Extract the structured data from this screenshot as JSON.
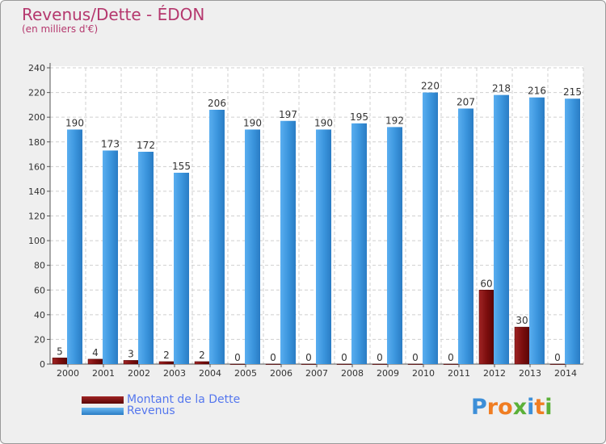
{
  "chart_data": {
    "type": "bar",
    "title": "Revenus/Dette - ÉDON",
    "subtitle": "(en milliers d'€)",
    "categories": [
      "2000",
      "2001",
      "2002",
      "2003",
      "2004",
      "2005",
      "2006",
      "2007",
      "2008",
      "2009",
      "2010",
      "2011",
      "2012",
      "2013",
      "2014"
    ],
    "series": [
      {
        "name": "Montant de la Dette",
        "color": "#7a0d0d",
        "values": [
          5,
          4,
          3,
          2,
          2,
          0,
          0,
          0,
          0,
          0,
          0,
          0,
          60,
          30,
          0
        ]
      },
      {
        "name": "Revenus",
        "color": "#3a94dc",
        "values": [
          190,
          173,
          172,
          155,
          206,
          190,
          197,
          190,
          195,
          192,
          220,
          207,
          218,
          216,
          215
        ]
      }
    ],
    "ylim": [
      0,
      240
    ],
    "yticks": [
      0,
      20,
      40,
      60,
      80,
      100,
      120,
      140,
      160,
      180,
      200,
      220,
      240
    ],
    "grid": true,
    "legend_position": "bottom-left"
  },
  "logo": {
    "text": "Proxiti",
    "letters": [
      {
        "char": "P",
        "color": "#3d8fd8"
      },
      {
        "char": "r",
        "color": "#f07d22"
      },
      {
        "char": "o",
        "color": "#f07d22"
      },
      {
        "char": "x",
        "color": "#5bb038"
      },
      {
        "char": "i",
        "color": "#3d8fd8"
      },
      {
        "char": "t",
        "color": "#f07d22"
      },
      {
        "char": "i",
        "color": "#5bb038"
      }
    ]
  }
}
